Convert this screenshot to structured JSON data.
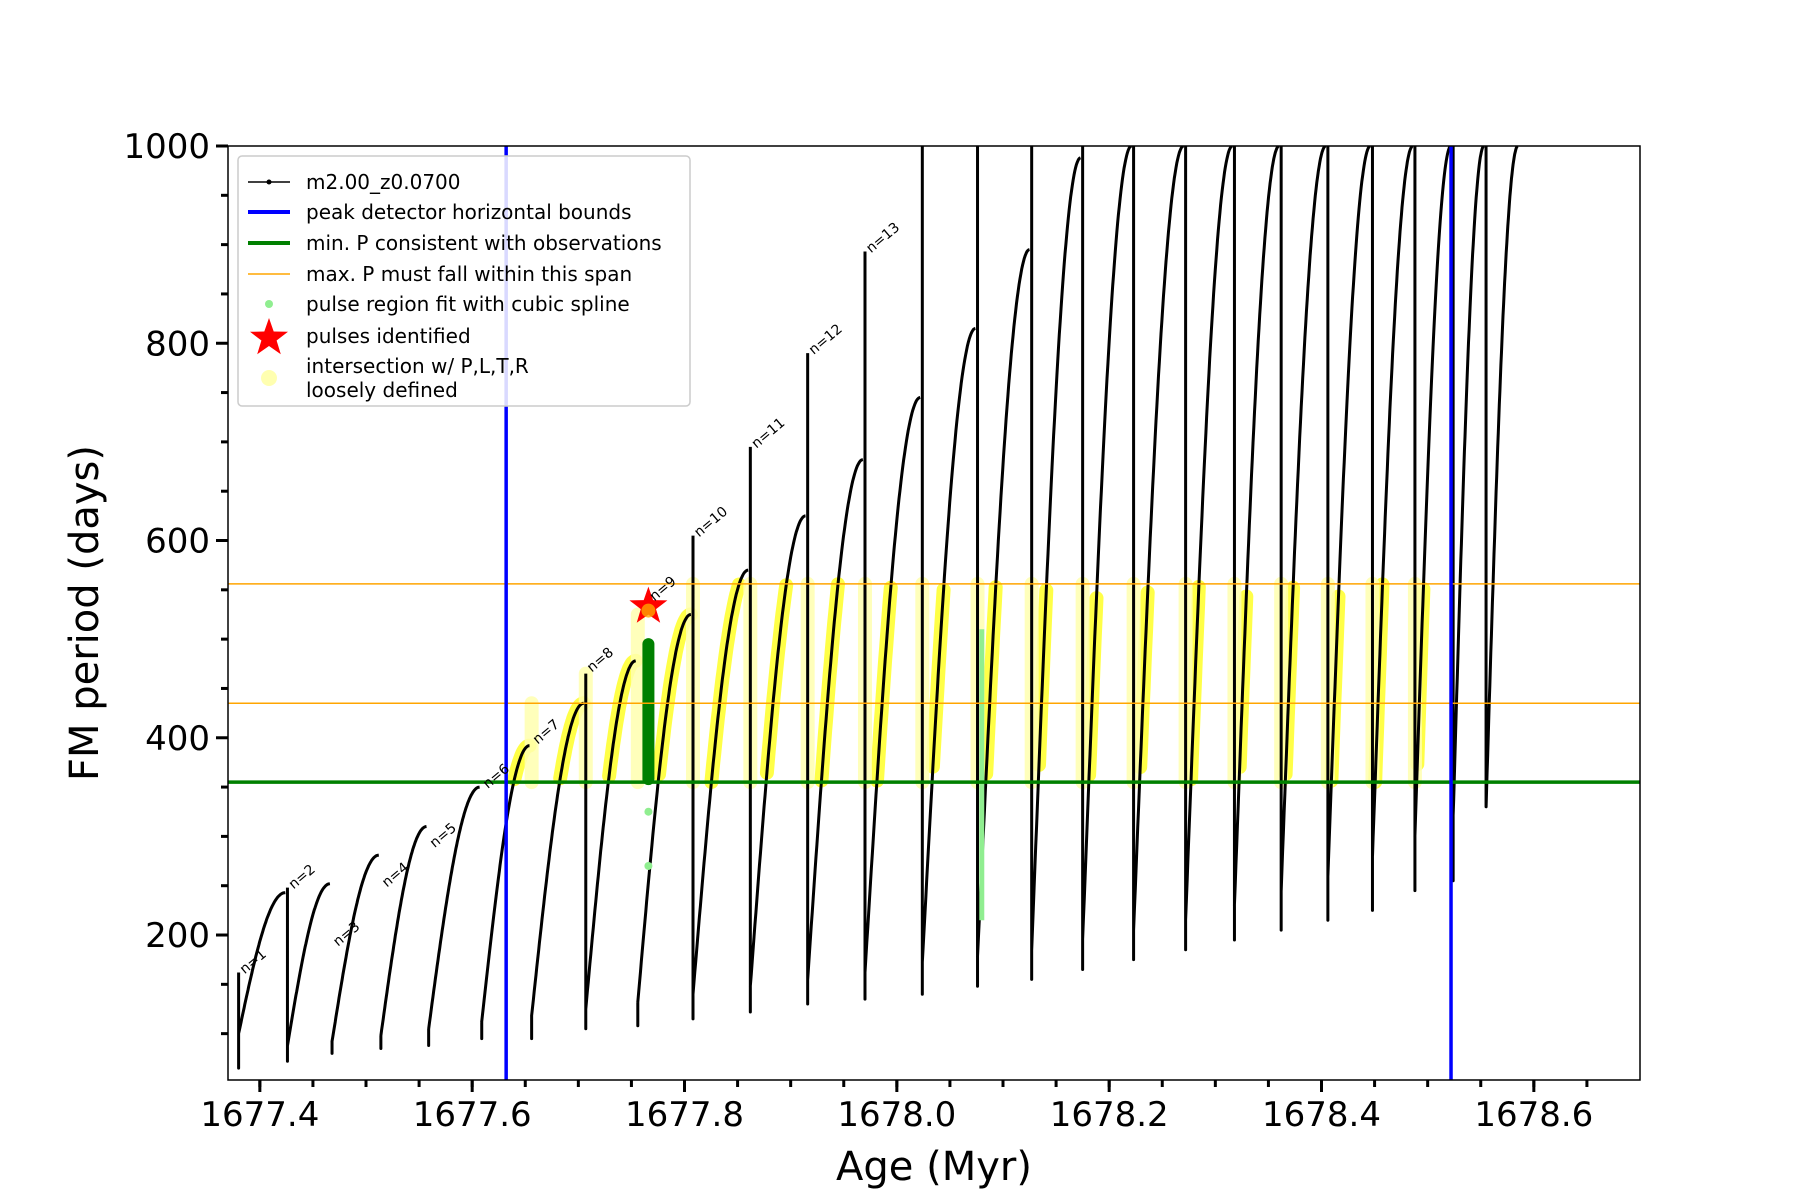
{
  "chart_data": {
    "type": "line",
    "xlabel": "Age (Myr)",
    "ylabel": "FM period (days)",
    "xlim": [
      1677.37,
      1678.7
    ],
    "ylim": [
      53,
      1000
    ],
    "x_ticks": [
      1677.4,
      1677.6,
      1677.8,
      1678.0,
      1678.2,
      1678.4,
      1678.6
    ],
    "x_tick_labels": [
      "1677.4",
      "1677.6",
      "1677.8",
      "1678.0",
      "1678.2",
      "1678.4",
      "1678.6"
    ],
    "y_ticks": [
      200,
      400,
      600,
      800,
      1000
    ],
    "y_tick_labels": [
      "200",
      "400",
      "600",
      "800",
      "1000"
    ],
    "grid": false,
    "legend_position": "top-left",
    "legend": [
      {
        "label": "m2.00_z0.0700",
        "kind": "line-marker",
        "color": "#000000"
      },
      {
        "label": "peak detector horizontal bounds",
        "kind": "line",
        "color": "#0000ff"
      },
      {
        "label": "min. P consistent with observations",
        "kind": "line",
        "color": "#008000"
      },
      {
        "label": "max. P must fall within this span",
        "kind": "thin-line",
        "color": "#ffa500"
      },
      {
        "label": "pulse region fit with cubic spline",
        "kind": "dot",
        "color": "#90ee90"
      },
      {
        "label": "pulses identified",
        "kind": "star",
        "color": "#ff0000"
      },
      {
        "label": "intersection w/ P,L,T,R",
        "label2": "loosely defined",
        "kind": "circle",
        "color": "#ffffb0"
      }
    ],
    "vertical_bounds": [
      1677.632,
      1678.522
    ],
    "min_period_line": 355,
    "max_period_span": [
      435,
      556
    ],
    "pulse_identified": {
      "x": 1677.766,
      "y": 533
    },
    "series": [
      {
        "name": "m2.00_z0.0700",
        "color": "#000000",
        "cycles": [
          {
            "x0": 1677.38,
            "x1": 1677.424,
            "start": 100,
            "peak": 243,
            "drop": 65,
            "spike": 162
          },
          {
            "x0": 1677.426,
            "x1": 1677.466,
            "start": 88,
            "peak": 252,
            "drop": 72,
            "spike": 248
          },
          {
            "x0": 1677.468,
            "x1": 1677.512,
            "start": 92,
            "peak": 281,
            "drop": 80,
            "spike": 0
          },
          {
            "x0": 1677.514,
            "x1": 1677.557,
            "start": 98,
            "peak": 310,
            "drop": 85,
            "spike": 0
          },
          {
            "x0": 1677.559,
            "x1": 1677.607,
            "start": 105,
            "peak": 350,
            "drop": 88,
            "spike": 0
          },
          {
            "x0": 1677.609,
            "x1": 1677.654,
            "start": 112,
            "peak": 392,
            "drop": 95,
            "spike": 0
          },
          {
            "x0": 1677.656,
            "x1": 1677.705,
            "start": 118,
            "peak": 435,
            "drop": 95,
            "spike": 0
          },
          {
            "x0": 1677.707,
            "x1": 1677.754,
            "start": 125,
            "peak": 478,
            "drop": 105,
            "spike": 465
          },
          {
            "x0": 1677.756,
            "x1": 1677.806,
            "start": 132,
            "peak": 525,
            "drop": 108,
            "spike": 0
          },
          {
            "x0": 1677.808,
            "x1": 1677.86,
            "start": 140,
            "peak": 570,
            "drop": 115,
            "spike": 605
          },
          {
            "x0": 1677.862,
            "x1": 1677.914,
            "start": 148,
            "peak": 625,
            "drop": 122,
            "spike": 695
          },
          {
            "x0": 1677.916,
            "x1": 1677.968,
            "start": 155,
            "peak": 682,
            "drop": 130,
            "spike": 790
          },
          {
            "x0": 1677.97,
            "x1": 1678.022,
            "start": 162,
            "peak": 745,
            "drop": 135,
            "spike": 893
          },
          {
            "x0": 1678.024,
            "x1": 1678.074,
            "start": 172,
            "peak": 815,
            "drop": 140,
            "spike": 1000
          },
          {
            "x0": 1678.076,
            "x1": 1678.125,
            "start": 178,
            "peak": 895,
            "drop": 148,
            "spike": 1000
          },
          {
            "x0": 1678.127,
            "x1": 1678.173,
            "start": 185,
            "peak": 988,
            "drop": 155,
            "spike": 1000
          },
          {
            "x0": 1678.175,
            "x1": 1678.221,
            "start": 195,
            "peak": 1000,
            "drop": 165,
            "spike": 1000
          },
          {
            "x0": 1678.223,
            "x1": 1678.27,
            "start": 205,
            "peak": 1000,
            "drop": 175,
            "spike": 1000
          },
          {
            "x0": 1678.272,
            "x1": 1678.316,
            "start": 215,
            "peak": 1000,
            "drop": 185,
            "spike": 1000
          },
          {
            "x0": 1678.318,
            "x1": 1678.36,
            "start": 230,
            "peak": 1000,
            "drop": 195,
            "spike": 1000
          },
          {
            "x0": 1678.362,
            "x1": 1678.404,
            "start": 245,
            "peak": 1000,
            "drop": 205,
            "spike": 1000
          },
          {
            "x0": 1678.406,
            "x1": 1678.446,
            "start": 260,
            "peak": 1000,
            "drop": 215,
            "spike": 1000
          },
          {
            "x0": 1678.448,
            "x1": 1678.486,
            "start": 280,
            "peak": 1000,
            "drop": 225,
            "spike": 1000
          },
          {
            "x0": 1678.488,
            "x1": 1678.522,
            "start": 300,
            "peak": 1000,
            "drop": 245,
            "spike": 1000
          },
          {
            "x0": 1678.524,
            "x1": 1678.553,
            "start": 320,
            "peak": 1000,
            "drop": 255,
            "spike": 1000
          },
          {
            "x0": 1678.555,
            "x1": 1678.585,
            "start": 330,
            "peak": 1000,
            "drop": 790,
            "spike": 1000
          }
        ]
      }
    ],
    "annotations": [
      {
        "text": "n=1",
        "x": 1677.38,
        "y": 162
      },
      {
        "text": "n=2",
        "x": 1677.426,
        "y": 248
      },
      {
        "text": "n=3",
        "x": 1677.468,
        "y": 190
      },
      {
        "text": "n=4",
        "x": 1677.514,
        "y": 250
      },
      {
        "text": "n=5",
        "x": 1677.559,
        "y": 290
      },
      {
        "text": "n=6",
        "x": 1677.609,
        "y": 350
      },
      {
        "text": "n=7",
        "x": 1677.656,
        "y": 395
      },
      {
        "text": "n=8",
        "x": 1677.707,
        "y": 468
      },
      {
        "text": "n=9",
        "x": 1677.766,
        "y": 540
      },
      {
        "text": "n=10",
        "x": 1677.808,
        "y": 605
      },
      {
        "text": "n=11",
        "x": 1677.862,
        "y": 695
      },
      {
        "text": "n=12",
        "x": 1677.916,
        "y": 790
      },
      {
        "text": "n=13",
        "x": 1677.97,
        "y": 893
      }
    ]
  }
}
